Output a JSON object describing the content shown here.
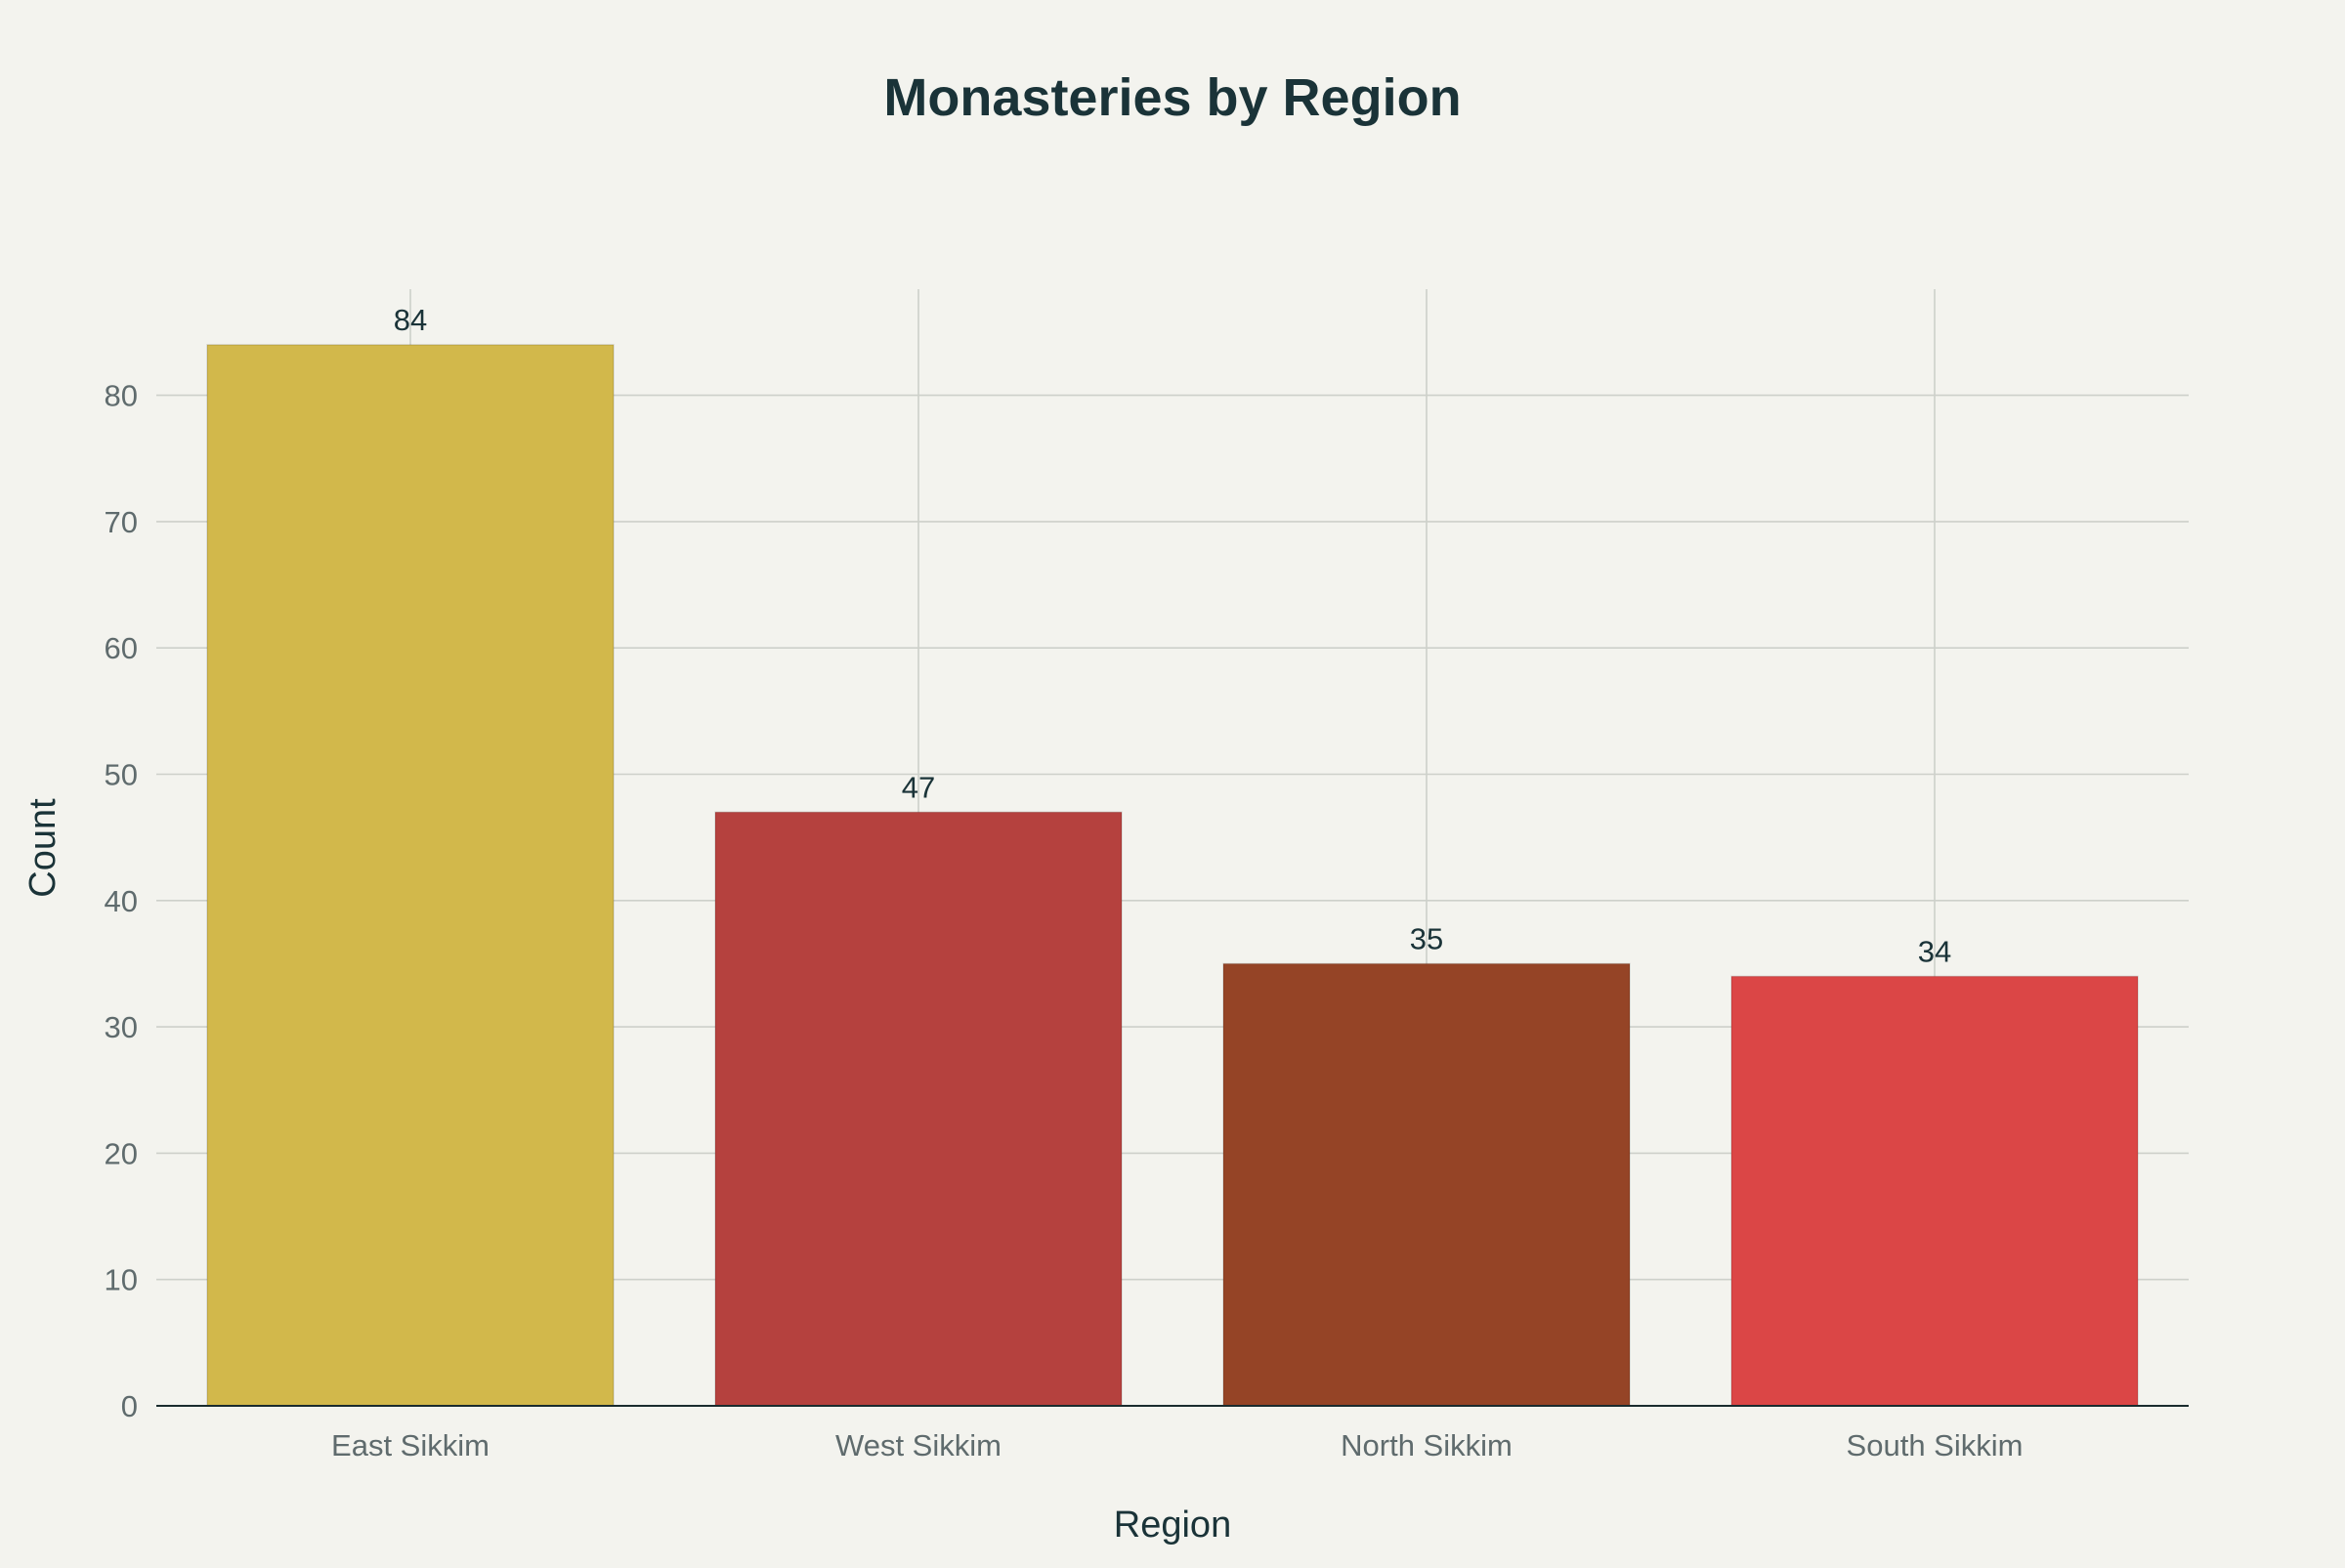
{
  "chart_data": {
    "type": "bar",
    "title": "Monasteries by Region",
    "xlabel": "Region",
    "ylabel": "Count",
    "categories": [
      "East Sikkim",
      "West Sikkim",
      "North Sikkim",
      "South Sikkim"
    ],
    "values": [
      84,
      47,
      35,
      34
    ],
    "data_labels": [
      "84",
      "47",
      "35",
      "34"
    ],
    "colors": [
      "#d2b84b",
      "#b5413e",
      "#954426",
      "#db4646"
    ],
    "ylim": [
      0,
      88.4
    ],
    "yticks": [
      0,
      10,
      20,
      30,
      40,
      50,
      60,
      70,
      80
    ],
    "grid": true,
    "legend": "none"
  }
}
